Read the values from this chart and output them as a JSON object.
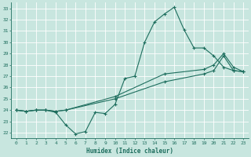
{
  "xlabel": "Humidex (Indice chaleur)",
  "xlim": [
    -0.5,
    23.5
  ],
  "ylim": [
    21.5,
    33.5
  ],
  "xticks": [
    0,
    1,
    2,
    3,
    4,
    5,
    6,
    7,
    8,
    9,
    10,
    11,
    12,
    13,
    14,
    15,
    16,
    17,
    18,
    19,
    20,
    21,
    22,
    23
  ],
  "yticks": [
    22,
    23,
    24,
    25,
    26,
    27,
    28,
    29,
    30,
    31,
    32,
    33
  ],
  "bg_color": "#c8e6df",
  "line_color": "#1e6e5e",
  "grid_color": "#ffffff",
  "line1_x": [
    0,
    1,
    2,
    3,
    4,
    5,
    6,
    7,
    8,
    9,
    10,
    11,
    12,
    13,
    14,
    15,
    16,
    17,
    18,
    19,
    20,
    21,
    22,
    23
  ],
  "line1_y": [
    24.0,
    23.9,
    24.0,
    24.0,
    23.8,
    22.7,
    21.9,
    22.1,
    23.8,
    23.7,
    24.5,
    26.8,
    27.0,
    30.0,
    31.8,
    32.5,
    33.1,
    31.1,
    29.5,
    29.5,
    28.8,
    27.8,
    27.5,
    27.4
  ],
  "line2_x": [
    0,
    1,
    2,
    3,
    4,
    5,
    10,
    15,
    19,
    20,
    21,
    22,
    23
  ],
  "line2_y": [
    24.0,
    23.9,
    24.0,
    24.0,
    23.9,
    24.0,
    25.2,
    27.2,
    27.6,
    28.0,
    29.0,
    27.8,
    27.4
  ],
  "line3_x": [
    0,
    1,
    2,
    3,
    4,
    5,
    10,
    15,
    19,
    20,
    21,
    22,
    23
  ],
  "line3_y": [
    24.0,
    23.9,
    24.0,
    24.0,
    23.9,
    24.0,
    25.0,
    26.5,
    27.2,
    27.5,
    28.8,
    27.5,
    27.4
  ]
}
